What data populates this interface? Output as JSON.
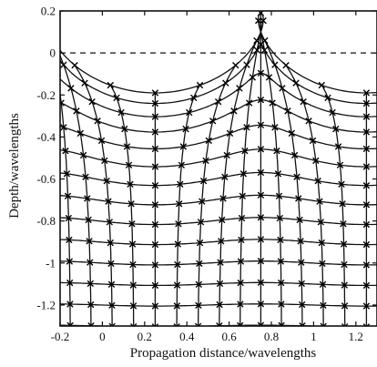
{
  "figure": {
    "xlabel": "Propagation distance/wavelengths",
    "ylabel": "Depth/wavelengths",
    "xticks": [
      "-0.2",
      "0",
      "0.2",
      "0.4",
      "0.6",
      "0.8",
      "1",
      "1.2"
    ],
    "yticks": [
      "0.2",
      "0",
      "-0.2",
      "-0.4",
      "-0.6",
      "-0.8",
      "-1",
      "-1.2"
    ]
  },
  "chart_data": {
    "type": "line",
    "title": "",
    "xlabel": "Propagation distance/wavelengths",
    "ylabel": "Depth/wavelengths",
    "xlim": [
      -0.2,
      1.3
    ],
    "ylim": [
      -1.3,
      0.2
    ],
    "grid": false,
    "reference_line": {
      "y": 0,
      "style": "dashed"
    },
    "wave": {
      "wavelength": 1.0,
      "crest_x": [
        -0.25,
        0.75
      ],
      "trough_x": [
        0.25,
        1.25
      ],
      "crest_y": 0.19,
      "trough_y": -0.19,
      "decay_depth": 0.33,
      "marker": "x"
    },
    "particle_grid": {
      "x0": [
        -0.15,
        -0.05,
        0.05,
        0.15,
        0.25,
        0.35,
        0.45,
        0.55,
        0.65,
        0.75,
        0.85,
        0.95,
        1.05,
        1.15,
        1.25
      ],
      "z0": [
        0.0,
        -0.1,
        -0.2,
        -0.3,
        -0.4,
        -0.5,
        -0.6,
        -0.7,
        -0.8,
        -0.9,
        -1.0,
        -1.1,
        -1.2,
        -1.3
      ]
    }
  }
}
